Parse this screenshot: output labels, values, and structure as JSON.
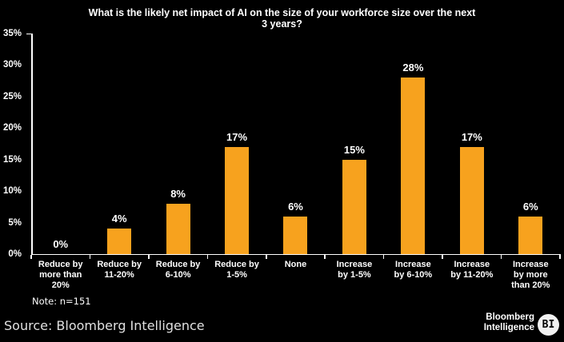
{
  "header": {
    "title_display": "What is the likely net impact of AI on the size of your workforce size over the next\n3 years?"
  },
  "footer": {
    "note": "Note: n=151",
    "source": "Source: Bloomberg Intelligence",
    "brand_line1": "Bloomberg",
    "brand_line2": "Intelligence",
    "brand_badge": "BI"
  },
  "colors": {
    "background": "#000000",
    "bar": "#F7A21E",
    "text": "#FFFFFF",
    "source_text": "#E0E0E0",
    "axis": "#FFFFFF",
    "badge_fill": "#F2F2F2",
    "badge_text": "#000000"
  },
  "chart_data": {
    "type": "bar",
    "title": "What is the likely net impact of AI on the size of your workforce size over the next 3 years?",
    "categories": [
      "Reduce by more than 20%",
      "Reduce by 11-20%",
      "Reduce by 6-10%",
      "Reduce by 1-5%",
      "None",
      "Increase by 1-5%",
      "Increase by 6-10%",
      "Increase by 11-20%",
      "Increase by more than 20%"
    ],
    "categories_wrapped": [
      "Reduce by\nmore than\n20%",
      "Reduce by\n11-20%",
      "Reduce by\n6-10%",
      "Reduce by\n1-5%",
      "None",
      "Increase\nby 1-5%",
      "Increase\nby 6-10%",
      "Increase\nby 11-20%",
      "Increase\nby more\nthan 20%"
    ],
    "values": [
      0,
      4,
      8,
      17,
      6,
      15,
      28,
      17,
      6
    ],
    "bar_labels": [
      "0%",
      "4%",
      "8%",
      "17%",
      "6%",
      "15%",
      "28%",
      "17%",
      "6%"
    ],
    "xlabel": "",
    "ylabel": "",
    "ylim": [
      0,
      35
    ],
    "yticks": [
      0,
      5,
      10,
      15,
      20,
      25,
      30,
      35
    ],
    "ytick_labels": [
      "0%",
      "5%",
      "10%",
      "15%",
      "20%",
      "25%",
      "30%",
      "35%"
    ],
    "grid": false,
    "legend": null,
    "bar_color": "#F7A21E",
    "note": "n=151",
    "source": "Bloomberg Intelligence"
  }
}
